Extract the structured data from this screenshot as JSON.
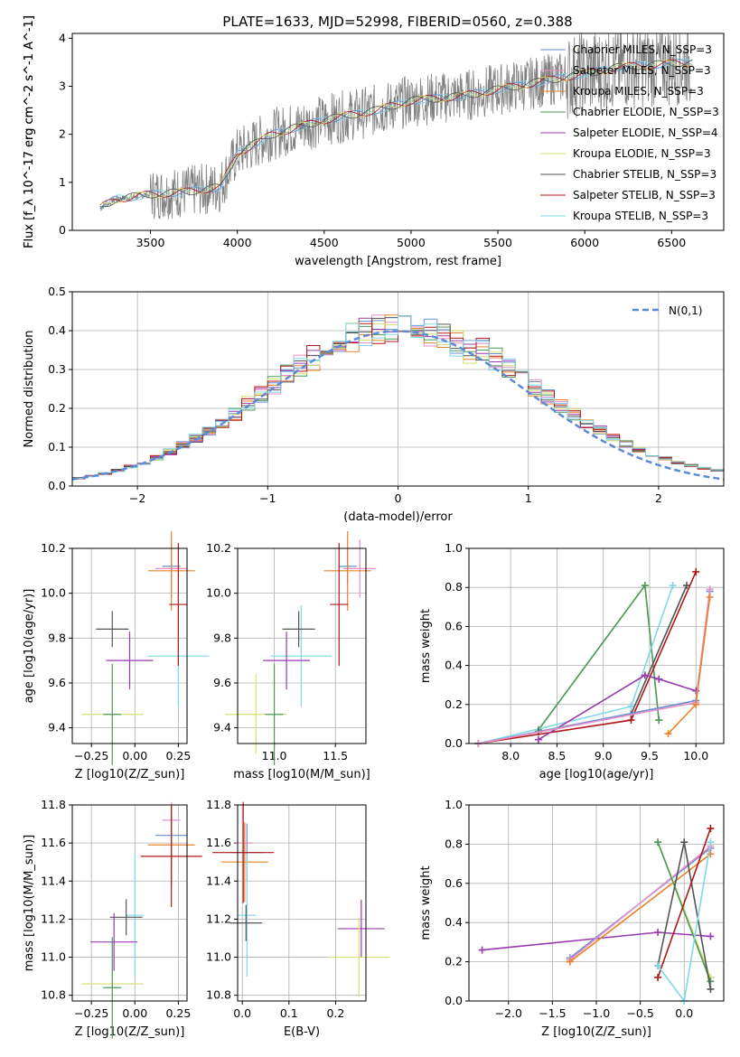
{
  "figure_title": "PLATE=1633, MJD=52998, FIBERID=0560, z=0.388",
  "colors": {
    "chabrier_miles": "#6a8fd0",
    "salpeter_miles": "#e88fc8",
    "kroupa_miles": "#e8832a",
    "chabrier_elodie": "#4a9a5a",
    "salpeter_elodie": "#9a3ab0",
    "kroupa_elodie": "#d8e070",
    "chabrier_stelib": "#555555",
    "salpeter_stelib": "#b01818",
    "kroupa_stelib": "#7fd8e8",
    "data": "#808080"
  },
  "legend": [
    "Chabrier MILES, N_SSP=3",
    "Salpeter MILES, N_SSP=3",
    "Kroupa MILES, N_SSP=3",
    "Chabrier ELODIE, N_SSP=3",
    "Salpeter ELODIE, N_SSP=4",
    "Kroupa ELODIE, N_SSP=3",
    "Chabrier STELIB, N_SSP=3",
    "Salpeter STELIB, N_SSP=3",
    "Kroupa STELIB, N_SSP=3"
  ],
  "chart_data": [
    {
      "type": "line",
      "title": "PLATE=1633, MJD=52998, FIBERID=0560, z=0.388",
      "xlabel": "wavelength [Angstrom, rest frame]",
      "ylabel": "Flux [f_λ 10^-17 erg cm^-2 s^-1 A^-1]",
      "xlim": [
        3050,
        6800
      ],
      "ylim": [
        0,
        4.1
      ],
      "xticks": [
        3500,
        4000,
        4500,
        5000,
        5500,
        6000,
        6500
      ],
      "yticks": [
        0,
        1,
        2,
        3,
        4
      ],
      "continuum": {
        "x": [
          3200,
          3300,
          3500,
          3700,
          3900,
          4000,
          4200,
          4500,
          4800,
          5000,
          5300,
          5600,
          5900,
          6200,
          6600
        ],
        "y": [
          0.45,
          0.65,
          0.75,
          0.8,
          0.9,
          1.6,
          2.0,
          2.3,
          2.5,
          2.7,
          2.8,
          3.0,
          3.2,
          3.4,
          3.5
        ]
      }
    },
    {
      "type": "step",
      "xlabel": "(data-model)/error",
      "ylabel": "Normed distribution",
      "xlim": [
        -2.5,
        2.5
      ],
      "ylim": [
        0,
        0.5
      ],
      "xticks": [
        -2,
        -1,
        0,
        1,
        2
      ],
      "yticks": [
        0.0,
        0.1,
        0.2,
        0.3,
        0.4,
        0.5
      ],
      "legend": "N(0,1)"
    },
    {
      "type": "scatter",
      "xlabel": "Z [log10(Z/Z_sun)]",
      "ylabel": "age [log10(age/yr)]",
      "xlim": [
        -0.36,
        0.3
      ],
      "ylim": [
        9.33,
        10.2
      ],
      "xticks": [
        -0.25,
        0.0,
        0.25
      ],
      "yticks": [
        9.4,
        9.6,
        9.8,
        10.0,
        10.2
      ],
      "points": [
        {
          "x": 0.21,
          "y": 10.12,
          "c": "chabrier_miles"
        },
        {
          "x": 0.21,
          "y": 10.11,
          "c": "salpeter_miles"
        },
        {
          "x": 0.21,
          "y": 10.1,
          "c": "kroupa_miles"
        },
        {
          "x": 0.25,
          "y": 9.72,
          "c": "kroupa_stelib"
        },
        {
          "x": 0.25,
          "y": 9.95,
          "c": "salpeter_stelib"
        },
        {
          "x": -0.13,
          "y": 9.84,
          "c": "chabrier_stelib"
        },
        {
          "x": -0.03,
          "y": 9.7,
          "c": "salpeter_elodie"
        },
        {
          "x": -0.13,
          "y": 9.46,
          "c": "kroupa_elodie"
        },
        {
          "x": -0.13,
          "y": 9.46,
          "c": "chabrier_elodie"
        }
      ]
    },
    {
      "type": "scatter",
      "xlabel": "mass [log10(M/M_sun)]",
      "ylabel": "",
      "xlim": [
        10.7,
        11.75
      ],
      "ylim": [
        9.33,
        10.2
      ],
      "xticks": [
        11.0,
        11.5
      ],
      "yticks": [
        9.4,
        9.6,
        9.8,
        10.0,
        10.2
      ],
      "points": [
        {
          "x": 11.6,
          "y": 10.12,
          "c": "chabrier_miles"
        },
        {
          "x": 11.7,
          "y": 10.11,
          "c": "salpeter_miles"
        },
        {
          "x": 11.6,
          "y": 10.1,
          "c": "kroupa_miles"
        },
        {
          "x": 11.22,
          "y": 9.72,
          "c": "kroupa_stelib"
        },
        {
          "x": 11.53,
          "y": 9.95,
          "c": "salpeter_stelib"
        },
        {
          "x": 11.2,
          "y": 9.84,
          "c": "chabrier_stelib"
        },
        {
          "x": 11.1,
          "y": 9.7,
          "c": "salpeter_elodie"
        },
        {
          "x": 10.85,
          "y": 9.46,
          "c": "kroupa_elodie"
        },
        {
          "x": 11.0,
          "y": 9.46,
          "c": "chabrier_elodie"
        }
      ]
    },
    {
      "type": "line",
      "xlabel": "age [log10(age/yr)]",
      "ylabel": "mass weight",
      "xlim": [
        7.55,
        10.3
      ],
      "ylim": [
        0,
        1
      ],
      "xticks": [
        8.0,
        8.5,
        9.0,
        9.5,
        10.0
      ],
      "yticks": [
        0.0,
        0.2,
        0.4,
        0.6,
        0.8,
        1.0
      ],
      "series": [
        {
          "c": "kroupa_elodie",
          "x": [
            8.3,
            9.45,
            9.6
          ],
          "y": [
            0.07,
            0.81,
            0.12
          ]
        },
        {
          "c": "chabrier_elodie",
          "x": [
            8.3,
            9.45,
            9.6
          ],
          "y": [
            0.07,
            0.81,
            0.12
          ]
        },
        {
          "c": "kroupa_stelib",
          "x": [
            7.65,
            9.3,
            9.75
          ],
          "y": [
            0.0,
            0.19,
            0.81
          ]
        },
        {
          "c": "chabrier_stelib",
          "x": [
            8.3,
            9.3,
            9.9
          ],
          "y": [
            0.06,
            0.15,
            0.81
          ]
        },
        {
          "c": "salpeter_stelib",
          "x": [
            7.65,
            9.3,
            10.0
          ],
          "y": [
            0.0,
            0.12,
            0.88
          ]
        },
        {
          "c": "salpeter_elodie",
          "x": [
            8.3,
            9.45,
            9.6,
            10.0
          ],
          "y": [
            0.02,
            0.35,
            0.33,
            0.27
          ]
        },
        {
          "c": "chabrier_miles",
          "x": [
            7.65,
            10.0,
            10.15
          ],
          "y": [
            0.0,
            0.22,
            0.78
          ]
        },
        {
          "c": "salpeter_miles",
          "x": [
            7.65,
            10.0,
            10.15
          ],
          "y": [
            0.0,
            0.21,
            0.79
          ]
        },
        {
          "c": "kroupa_miles",
          "x": [
            9.7,
            10.0,
            10.15
          ],
          "y": [
            0.05,
            0.2,
            0.75
          ]
        }
      ]
    },
    {
      "type": "scatter",
      "xlabel": "Z [log10(Z/Z_sun)]",
      "ylabel": "mass [log10(M/M_sun)]",
      "xlim": [
        -0.36,
        0.3
      ],
      "ylim": [
        10.77,
        11.8
      ],
      "xticks": [
        -0.25,
        0.0,
        0.25
      ],
      "yticks": [
        10.8,
        11.0,
        11.2,
        11.4,
        11.6,
        11.8
      ],
      "points": [
        {
          "x": 0.21,
          "y": 11.72,
          "c": "salpeter_miles"
        },
        {
          "x": 0.21,
          "y": 11.64,
          "c": "chabrier_miles"
        },
        {
          "x": 0.21,
          "y": 11.59,
          "c": "kroupa_miles"
        },
        {
          "x": 0.21,
          "y": 11.53,
          "c": "salpeter_stelib"
        },
        {
          "x": 0.0,
          "y": 11.22,
          "c": "kroupa_stelib"
        },
        {
          "x": -0.05,
          "y": 11.21,
          "c": "chabrier_stelib"
        },
        {
          "x": -0.12,
          "y": 11.08,
          "c": "salpeter_elodie"
        },
        {
          "x": -0.13,
          "y": 10.86,
          "c": "kroupa_elodie"
        },
        {
          "x": -0.13,
          "y": 10.84,
          "c": "chabrier_elodie"
        }
      ]
    },
    {
      "type": "scatter",
      "xlabel": "E(B-V)",
      "ylabel": "",
      "xlim": [
        -0.01,
        0.265
      ],
      "ylim": [
        10.77,
        11.8
      ],
      "xticks": [
        0.0,
        0.1,
        0.2
      ],
      "yticks": [
        10.8,
        11.0,
        11.2,
        11.4,
        11.6,
        11.8
      ],
      "points": [
        {
          "x": 0.005,
          "y": 11.6,
          "c": "salpeter_miles"
        },
        {
          "x": 0.01,
          "y": 11.55,
          "c": "chabrier_miles"
        },
        {
          "x": 0.005,
          "y": 11.5,
          "c": "kroupa_miles"
        },
        {
          "x": 0.002,
          "y": 11.55,
          "c": "salpeter_stelib"
        },
        {
          "x": 0.01,
          "y": 11.22,
          "c": "kroupa_stelib"
        },
        {
          "x": 0.008,
          "y": 11.18,
          "c": "chabrier_stelib"
        },
        {
          "x": 0.255,
          "y": 11.15,
          "c": "salpeter_elodie"
        },
        {
          "x": 0.25,
          "y": 11.0,
          "c": "kroupa_elodie"
        }
      ]
    },
    {
      "type": "line",
      "xlabel": "Z [log10(Z/Z_sun)]",
      "ylabel": "mass weight",
      "xlim": [
        -2.45,
        0.45
      ],
      "ylim": [
        0,
        1
      ],
      "xticks": [
        -2.0,
        -1.5,
        -1.0,
        -0.5,
        0.0
      ],
      "yticks": [
        0.0,
        0.2,
        0.4,
        0.6,
        0.8,
        1.0
      ],
      "series": [
        {
          "c": "salpeter_elodie",
          "x": [
            -2.3,
            -0.3,
            0.3
          ],
          "y": [
            0.26,
            0.35,
            0.33
          ]
        },
        {
          "c": "chabrier_miles",
          "x": [
            -1.3,
            0.3
          ],
          "y": [
            0.22,
            0.78
          ]
        },
        {
          "c": "salpeter_miles",
          "x": [
            -1.3,
            0.3
          ],
          "y": [
            0.21,
            0.79
          ]
        },
        {
          "c": "kroupa_miles",
          "x": [
            -1.3,
            0.3
          ],
          "y": [
            0.2,
            0.75
          ]
        },
        {
          "c": "kroupa_elodie",
          "x": [
            -0.3,
            0.3
          ],
          "y": [
            0.81,
            0.12
          ]
        },
        {
          "c": "chabrier_elodie",
          "x": [
            -0.3,
            0.3
          ],
          "y": [
            0.81,
            0.1
          ]
        },
        {
          "c": "chabrier_stelib",
          "x": [
            -0.3,
            0.0,
            0.3
          ],
          "y": [
            0.18,
            0.81,
            0.06
          ]
        },
        {
          "c": "salpeter_stelib",
          "x": [
            -0.3,
            0.3
          ],
          "y": [
            0.12,
            0.88
          ]
        },
        {
          "c": "kroupa_stelib",
          "x": [
            -0.3,
            0.0,
            0.3
          ],
          "y": [
            0.18,
            0.0,
            0.81
          ]
        }
      ]
    }
  ]
}
